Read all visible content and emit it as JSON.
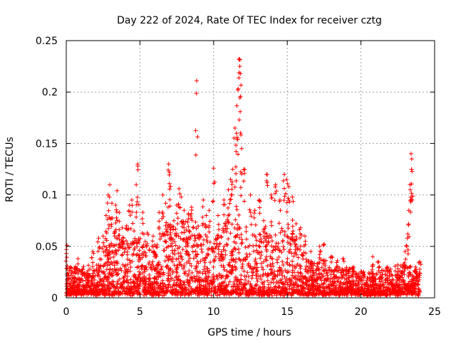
{
  "chart_data": {
    "type": "scatter",
    "title": "Day 222 of 2024, Rate Of TEC Index for receiver cztg",
    "xlabel": "GPS time / hours",
    "ylabel": "ROTI / TECUs",
    "xlim": [
      0,
      25
    ],
    "ylim": [
      0,
      0.25
    ],
    "xticks": [
      "0",
      "5",
      "10",
      "15",
      "20",
      "25"
    ],
    "yticks": [
      "0",
      "0.05",
      "0.1",
      "0.15",
      "0.2",
      "0.25"
    ],
    "grid": true,
    "marker": "plus",
    "color": "#ff0000",
    "series": [
      {
        "values": [
          [
            0.05,
            0.051
          ],
          [
            0.3,
            0.03
          ],
          [
            0.8,
            0.038
          ],
          [
            1.5,
            0.022
          ],
          [
            1.8,
            0.045
          ],
          [
            2.2,
            0.058
          ],
          [
            2.5,
            0.06
          ],
          [
            2.7,
            0.08
          ],
          [
            2.85,
            0.1
          ],
          [
            2.95,
            0.11
          ],
          [
            3.1,
            0.092
          ],
          [
            3.35,
            0.09
          ],
          [
            3.45,
            0.104
          ],
          [
            3.6,
            0.083
          ],
          [
            3.8,
            0.068
          ],
          [
            4.1,
            0.07
          ],
          [
            4.3,
            0.09
          ],
          [
            4.45,
            0.095
          ],
          [
            4.6,
            0.065
          ],
          [
            4.75,
            0.11
          ],
          [
            4.85,
            0.13
          ],
          [
            5.2,
            0.083
          ],
          [
            5.5,
            0.063
          ],
          [
            5.9,
            0.06
          ],
          [
            6.3,
            0.083
          ],
          [
            6.55,
            0.1
          ],
          [
            6.75,
            0.092
          ],
          [
            6.95,
            0.13
          ],
          [
            7.0,
            0.122
          ],
          [
            7.3,
            0.075
          ],
          [
            7.5,
            0.09
          ],
          [
            7.65,
            0.106
          ],
          [
            7.8,
            0.098
          ],
          [
            8.0,
            0.085
          ],
          [
            8.3,
            0.082
          ],
          [
            8.5,
            0.088
          ],
          [
            8.85,
            0.211
          ],
          [
            9.3,
            0.095
          ],
          [
            9.5,
            0.08
          ],
          [
            9.7,
            0.085
          ],
          [
            10.0,
            0.126
          ],
          [
            10.3,
            0.08
          ],
          [
            10.7,
            0.095
          ],
          [
            11.0,
            0.105
          ],
          [
            11.15,
            0.115
          ],
          [
            11.3,
            0.125
          ],
          [
            11.45,
            0.165
          ],
          [
            11.55,
            0.16
          ],
          [
            11.65,
            0.202
          ],
          [
            11.72,
            0.232
          ],
          [
            11.78,
            0.225
          ],
          [
            11.82,
            0.218
          ],
          [
            11.9,
            0.145
          ],
          [
            12.1,
            0.125
          ],
          [
            12.5,
            0.1
          ],
          [
            12.8,
            0.085
          ],
          [
            13.1,
            0.095
          ],
          [
            13.4,
            0.075
          ],
          [
            13.6,
            0.12
          ],
          [
            13.9,
            0.1
          ],
          [
            14.2,
            0.11
          ],
          [
            14.5,
            0.095
          ],
          [
            14.8,
            0.12
          ],
          [
            14.95,
            0.115
          ],
          [
            15.1,
            0.108
          ],
          [
            15.35,
            0.098
          ],
          [
            15.6,
            0.072
          ],
          [
            15.9,
            0.068
          ],
          [
            16.2,
            0.06
          ],
          [
            16.6,
            0.045
          ],
          [
            17.2,
            0.05
          ],
          [
            17.5,
            0.052
          ],
          [
            18.0,
            0.04
          ],
          [
            18.4,
            0.036
          ],
          [
            18.8,
            0.038
          ],
          [
            19.5,
            0.03
          ],
          [
            20.0,
            0.025
          ],
          [
            20.8,
            0.04
          ],
          [
            21.2,
            0.035
          ],
          [
            21.8,
            0.03
          ],
          [
            22.5,
            0.032
          ],
          [
            23.0,
            0.045
          ],
          [
            23.15,
            0.058
          ],
          [
            23.25,
            0.085
          ],
          [
            23.35,
            0.105
          ],
          [
            23.4,
            0.14
          ],
          [
            23.45,
            0.135
          ],
          [
            23.7,
            0.03
          ],
          [
            24.0,
            0.035
          ]
        ]
      }
    ],
    "density": {
      "description": "dense cloud of points between the baseline and an upper envelope",
      "envelope": [
        [
          0,
          0.032
        ],
        [
          1,
          0.03
        ],
        [
          2,
          0.032
        ],
        [
          2.5,
          0.045
        ],
        [
          3,
          0.06
        ],
        [
          3.5,
          0.07
        ],
        [
          4,
          0.055
        ],
        [
          4.5,
          0.06
        ],
        [
          5,
          0.065
        ],
        [
          5.5,
          0.05
        ],
        [
          6,
          0.05
        ],
        [
          6.5,
          0.065
        ],
        [
          7,
          0.075
        ],
        [
          7.5,
          0.07
        ],
        [
          8,
          0.085
        ],
        [
          8.5,
          0.08
        ],
        [
          9,
          0.07
        ],
        [
          9.5,
          0.06
        ],
        [
          10,
          0.06
        ],
        [
          10.5,
          0.065
        ],
        [
          11,
          0.08
        ],
        [
          11.5,
          0.09
        ],
        [
          12,
          0.08
        ],
        [
          12.5,
          0.06
        ],
        [
          13,
          0.06
        ],
        [
          13.5,
          0.07
        ],
        [
          14,
          0.065
        ],
        [
          14.5,
          0.065
        ],
        [
          15,
          0.075
        ],
        [
          15.5,
          0.06
        ],
        [
          16,
          0.05
        ],
        [
          16.5,
          0.035
        ],
        [
          17,
          0.035
        ],
        [
          17.5,
          0.04
        ],
        [
          18,
          0.03
        ],
        [
          19,
          0.03
        ],
        [
          20,
          0.025
        ],
        [
          21,
          0.025
        ],
        [
          22,
          0.028
        ],
        [
          23,
          0.035
        ],
        [
          23.5,
          0.03
        ],
        [
          24,
          0.03
        ]
      ],
      "baseline": 0.004
    }
  }
}
